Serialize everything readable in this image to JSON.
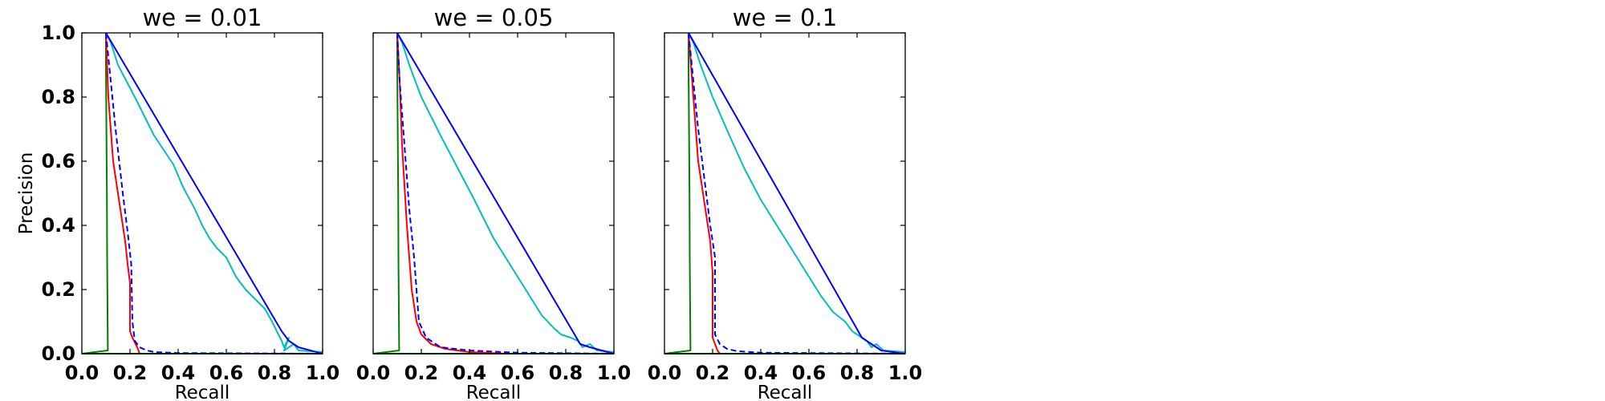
{
  "chart_data": [
    {
      "type": "line",
      "title": "we = 0.01",
      "xlabel": "Recall",
      "ylabel": "Precision",
      "xlim": [
        0,
        1
      ],
      "ylim": [
        0,
        1
      ],
      "xticks": [
        "0.0",
        "0.2",
        "0.4",
        "0.6",
        "0.8",
        "1.0"
      ],
      "yticks": [
        "0.0",
        "0.2",
        "0.4",
        "0.6",
        "0.8",
        "1.0"
      ],
      "grid": false,
      "series": [
        {
          "color": "#008000",
          "style": "solid",
          "x": [
            0.1,
            0.1,
            0.102,
            0.104,
            0.105,
            0.107,
            0.108,
            0.0,
            1.0
          ],
          "y": [
            1.0,
            0.9,
            0.7,
            0.5,
            0.3,
            0.1,
            0.01,
            0.0,
            0.0
          ]
        },
        {
          "color": "#ff0000",
          "style": "solid",
          "x": [
            0.1,
            0.11,
            0.13,
            0.16,
            0.18,
            0.19,
            0.2,
            0.2,
            0.21,
            0.23,
            0.24
          ],
          "y": [
            1.0,
            0.8,
            0.6,
            0.45,
            0.35,
            0.28,
            0.22,
            0.07,
            0.05,
            0.02,
            0.0
          ]
        },
        {
          "color": "#0000ff",
          "style": "dashed",
          "x": [
            0.1,
            0.12,
            0.14,
            0.17,
            0.19,
            0.205,
            0.21,
            0.22,
            0.24,
            0.27,
            0.3,
            0.4,
            1.0
          ],
          "y": [
            1.0,
            0.85,
            0.7,
            0.5,
            0.38,
            0.28,
            0.1,
            0.04,
            0.02,
            0.01,
            0.005,
            0.002,
            0.0
          ]
        },
        {
          "color": "#00bfbf",
          "style": "solid",
          "x": [
            0.1,
            0.12,
            0.15,
            0.22,
            0.3,
            0.38,
            0.42,
            0.47,
            0.5,
            0.53,
            0.56,
            0.6,
            0.64,
            0.68,
            0.72,
            0.76,
            0.79,
            0.81,
            0.83,
            0.84,
            0.86,
            0.84,
            0.88,
            0.9,
            1.0
          ],
          "y": [
            1.0,
            0.97,
            0.9,
            0.8,
            0.68,
            0.59,
            0.52,
            0.45,
            0.4,
            0.36,
            0.33,
            0.3,
            0.24,
            0.2,
            0.17,
            0.14,
            0.1,
            0.07,
            0.04,
            0.02,
            0.05,
            0.01,
            0.03,
            0.01,
            0.005
          ]
        },
        {
          "color": "#0000ff",
          "style": "solid",
          "x": [
            0.1,
            0.83,
            0.86,
            0.9,
            1.0
          ],
          "y": [
            1.0,
            0.07,
            0.04,
            0.02,
            0.0
          ]
        }
      ]
    },
    {
      "type": "line",
      "title": "we = 0.05",
      "xlabel": "Recall",
      "ylabel": "",
      "xlim": [
        0,
        1
      ],
      "ylim": [
        0,
        1
      ],
      "xticks": [
        "0.0",
        "0.2",
        "0.4",
        "0.6",
        "0.8",
        "1.0"
      ],
      "yticks": [],
      "grid": false,
      "series": [
        {
          "color": "#008000",
          "style": "solid",
          "x": [
            0.1,
            0.1,
            0.102,
            0.104,
            0.105,
            0.107,
            0.108,
            0.0,
            1.0
          ],
          "y": [
            1.0,
            0.9,
            0.7,
            0.5,
            0.3,
            0.1,
            0.01,
            0.0,
            0.0
          ]
        },
        {
          "color": "#ff0000",
          "style": "solid",
          "x": [
            0.1,
            0.11,
            0.12,
            0.14,
            0.16,
            0.18,
            0.2,
            0.24,
            0.3,
            0.4,
            0.55
          ],
          "y": [
            1.0,
            0.85,
            0.65,
            0.4,
            0.2,
            0.1,
            0.06,
            0.03,
            0.015,
            0.005,
            0.0
          ]
        },
        {
          "color": "#0000ff",
          "style": "dashed",
          "x": [
            0.1,
            0.11,
            0.13,
            0.15,
            0.17,
            0.18,
            0.19,
            0.22,
            0.28,
            0.4,
            0.6,
            1.0
          ],
          "y": [
            1.0,
            0.85,
            0.65,
            0.45,
            0.3,
            0.2,
            0.1,
            0.05,
            0.02,
            0.01,
            0.003,
            0.0
          ]
        },
        {
          "color": "#00bfbf",
          "style": "solid",
          "x": [
            0.1,
            0.12,
            0.15,
            0.2,
            0.28,
            0.35,
            0.42,
            0.46,
            0.5,
            0.55,
            0.6,
            0.65,
            0.7,
            0.75,
            0.78,
            0.82,
            0.85,
            0.87,
            0.9,
            0.93,
            1.0
          ],
          "y": [
            1.0,
            0.97,
            0.9,
            0.8,
            0.68,
            0.58,
            0.48,
            0.42,
            0.36,
            0.3,
            0.24,
            0.18,
            0.12,
            0.08,
            0.06,
            0.05,
            0.04,
            0.02,
            0.03,
            0.01,
            0.005
          ]
        },
        {
          "color": "#0000ff",
          "style": "solid",
          "x": [
            0.1,
            0.86,
            0.9,
            0.95,
            1.0
          ],
          "y": [
            1.0,
            0.03,
            0.02,
            0.01,
            0.0
          ]
        }
      ]
    },
    {
      "type": "line",
      "title": "we = 0.1",
      "xlabel": "Recall",
      "ylabel": "",
      "xlim": [
        0,
        1
      ],
      "ylim": [
        0,
        1
      ],
      "xticks": [
        "0.0",
        "0.2",
        "0.4",
        "0.6",
        "0.8",
        "1.0"
      ],
      "yticks": [],
      "grid": false,
      "series": [
        {
          "color": "#008000",
          "style": "solid",
          "x": [
            0.1,
            0.1,
            0.102,
            0.104,
            0.105,
            0.107,
            0.108,
            0.0,
            1.0
          ],
          "y": [
            1.0,
            0.9,
            0.7,
            0.5,
            0.3,
            0.1,
            0.01,
            0.0,
            0.0
          ]
        },
        {
          "color": "#ff0000",
          "style": "solid",
          "x": [
            0.1,
            0.12,
            0.14,
            0.17,
            0.19,
            0.2,
            0.2,
            0.21,
            0.22,
            0.23
          ],
          "y": [
            1.0,
            0.8,
            0.6,
            0.45,
            0.35,
            0.25,
            0.05,
            0.03,
            0.01,
            0.0
          ]
        },
        {
          "color": "#0000ff",
          "style": "dashed",
          "x": [
            0.1,
            0.12,
            0.14,
            0.17,
            0.19,
            0.21,
            0.21,
            0.23,
            0.26,
            0.3,
            0.4,
            1.0
          ],
          "y": [
            1.0,
            0.85,
            0.7,
            0.52,
            0.4,
            0.3,
            0.06,
            0.03,
            0.015,
            0.008,
            0.003,
            0.0
          ]
        },
        {
          "color": "#00bfbf",
          "style": "solid",
          "x": [
            0.1,
            0.12,
            0.15,
            0.2,
            0.27,
            0.33,
            0.4,
            0.45,
            0.5,
            0.55,
            0.6,
            0.65,
            0.7,
            0.75,
            0.78,
            0.82,
            0.84,
            0.86,
            0.88,
            0.91,
            1.0
          ],
          "y": [
            1.0,
            0.97,
            0.9,
            0.8,
            0.68,
            0.58,
            0.48,
            0.42,
            0.36,
            0.3,
            0.24,
            0.18,
            0.13,
            0.1,
            0.07,
            0.05,
            0.04,
            0.02,
            0.03,
            0.01,
            0.005
          ]
        },
        {
          "color": "#0000ff",
          "style": "solid",
          "x": [
            0.1,
            0.82,
            0.86,
            0.9,
            1.0
          ],
          "y": [
            1.0,
            0.05,
            0.03,
            0.01,
            0.0
          ]
        }
      ]
    }
  ]
}
